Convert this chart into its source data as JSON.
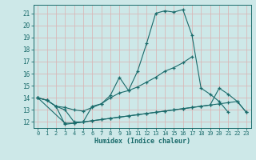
{
  "xlabel": "Humidex (Indice chaleur)",
  "bg_color": "#cde8e8",
  "grid_color": "#dbb0b0",
  "line_color": "#1a6b6b",
  "xlim": [
    -0.5,
    23.5
  ],
  "ylim": [
    11.5,
    21.7
  ],
  "xticks": [
    0,
    1,
    2,
    3,
    4,
    5,
    6,
    7,
    8,
    9,
    10,
    11,
    12,
    13,
    14,
    15,
    16,
    17,
    18,
    19,
    20,
    21,
    22,
    23
  ],
  "yticks": [
    12,
    13,
    14,
    15,
    16,
    17,
    18,
    19,
    20,
    21
  ],
  "line1_x": [
    0,
    1,
    2,
    3,
    4,
    5,
    6,
    7,
    8,
    9,
    10,
    11,
    12,
    13,
    14,
    15,
    16,
    17,
    18,
    19,
    20,
    21
  ],
  "line1_y": [
    14.0,
    13.8,
    13.3,
    11.8,
    11.9,
    12.0,
    13.3,
    13.5,
    14.2,
    15.7,
    14.6,
    16.2,
    18.5,
    21.0,
    21.2,
    21.1,
    21.3,
    19.2,
    14.8,
    14.3,
    13.7,
    12.8
  ],
  "line2_x": [
    0,
    1,
    2,
    3,
    4,
    5,
    6,
    7,
    8,
    9,
    10,
    11,
    12,
    13,
    14,
    15,
    16,
    17
  ],
  "line2_y": [
    14.0,
    13.8,
    13.3,
    13.2,
    13.0,
    12.9,
    13.2,
    13.5,
    14.0,
    14.4,
    14.6,
    14.9,
    15.3,
    15.7,
    16.2,
    16.5,
    16.9,
    17.4
  ],
  "line3_x": [
    0,
    3,
    4,
    5,
    6,
    7,
    8,
    9,
    10,
    11,
    12,
    13,
    14,
    15,
    16,
    17,
    18,
    19,
    20,
    21,
    22,
    23
  ],
  "line3_y": [
    14.0,
    11.9,
    11.9,
    12.0,
    12.1,
    12.2,
    12.3,
    12.4,
    12.5,
    12.6,
    12.7,
    12.8,
    12.9,
    13.0,
    13.1,
    13.2,
    13.3,
    13.4,
    14.8,
    14.3,
    13.7,
    12.8
  ],
  "line4_x": [
    0,
    1,
    2,
    3,
    4,
    5,
    6,
    7,
    8,
    9,
    10,
    11,
    12,
    13,
    14,
    15,
    16,
    17,
    18,
    19,
    20,
    21,
    22,
    23
  ],
  "line4_y": [
    14.0,
    13.8,
    13.3,
    13.0,
    12.0,
    12.0,
    12.1,
    12.2,
    12.3,
    12.4,
    12.5,
    12.6,
    12.7,
    12.8,
    12.9,
    13.0,
    13.1,
    13.2,
    13.3,
    13.4,
    13.5,
    13.6,
    13.7,
    12.8
  ]
}
